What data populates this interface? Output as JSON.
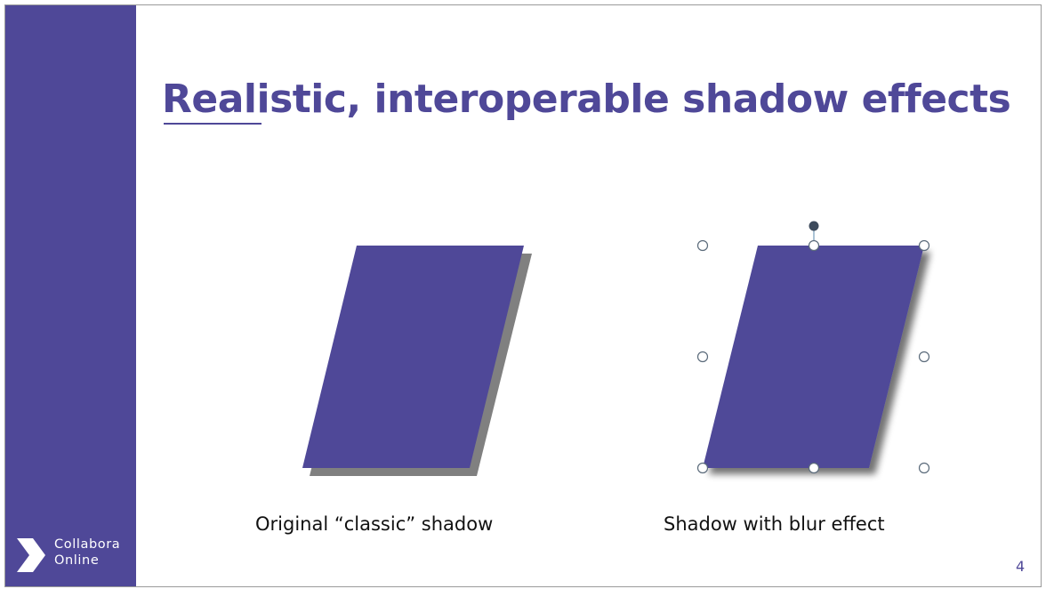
{
  "slide": {
    "title": "Realistic, interoperable shadow effects",
    "shapes": [
      {
        "caption": "Original “classic” shadow",
        "shadow": "classic"
      },
      {
        "caption": "Shadow with blur effect",
        "shadow": "blur",
        "selected": true
      }
    ],
    "page_number": "4"
  },
  "branding": {
    "logo_line1": "Collabora",
    "logo_line2": "Online"
  },
  "colors": {
    "accent": "#4f4898",
    "classic_shadow": "#808080",
    "selection_handle": "#8fb0c8",
    "rotation_handle": "#3d4a5c"
  }
}
